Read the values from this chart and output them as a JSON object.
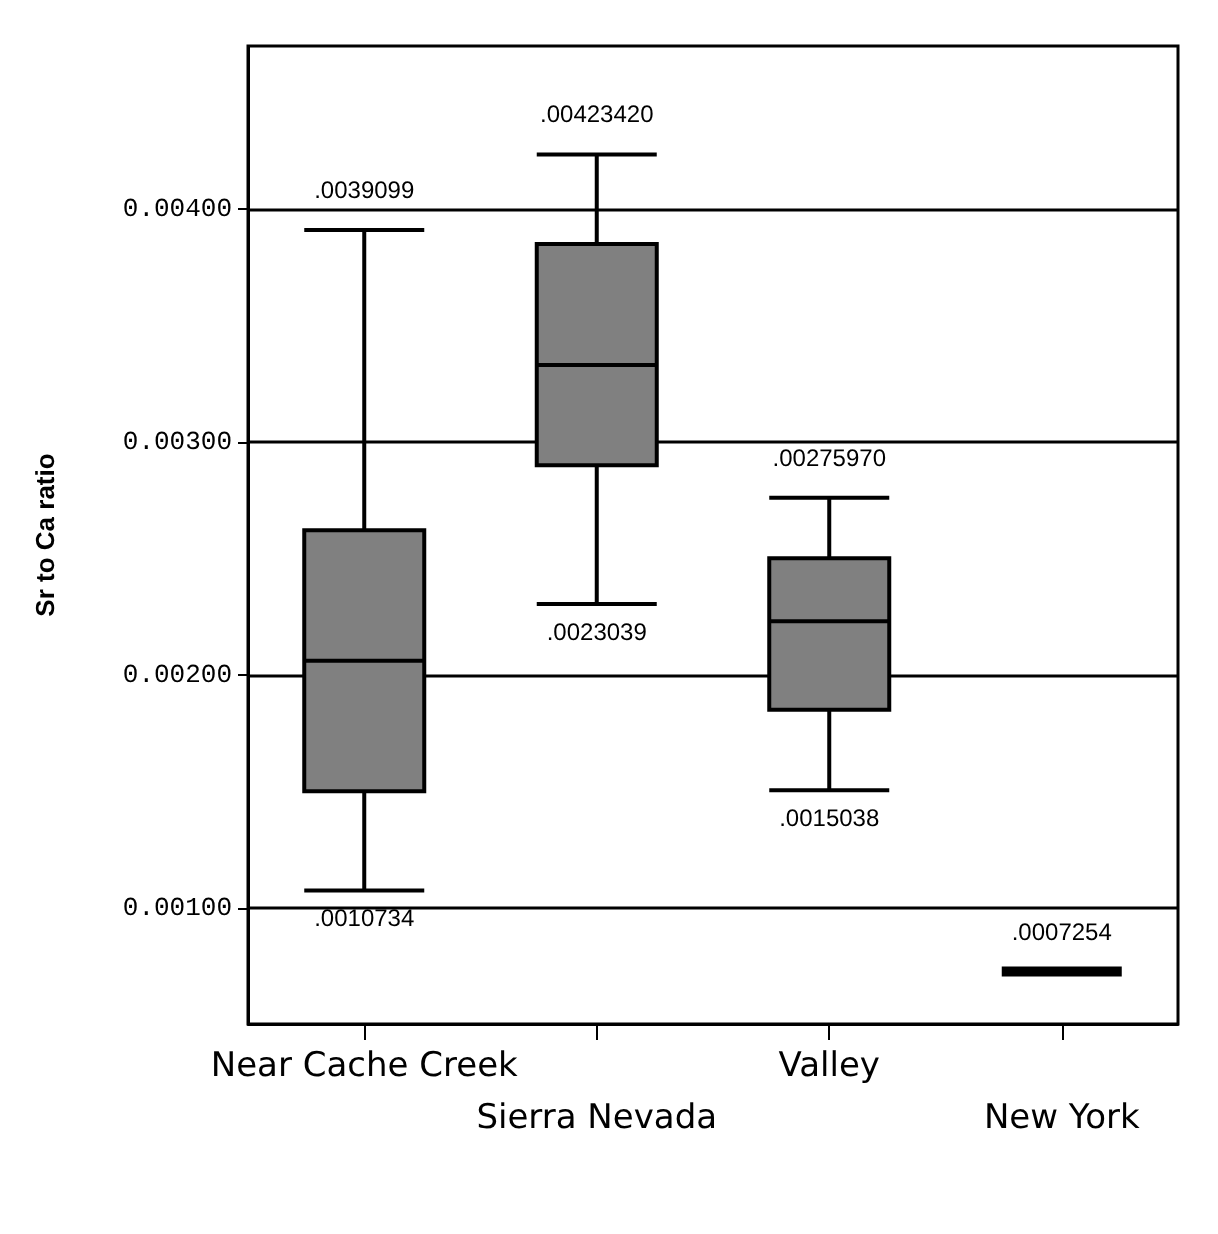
{
  "chart_data": {
    "type": "box",
    "ylabel": "Sr to Ca ratio",
    "categories": [
      "Near Cache Creek",
      "Sierra Nevada",
      "Valley",
      "New York"
    ],
    "colors": [
      "#808080",
      "#808080",
      "#808080",
      "#000000"
    ],
    "boxes": [
      {
        "low": 0.0010734,
        "q1": 0.0015,
        "median": 0.00206,
        "q3": 0.00262,
        "high": 0.0039099
      },
      {
        "low": 0.0023039,
        "q1": 0.0029,
        "median": 0.00333,
        "q3": 0.00385,
        "high": 0.0042342
      },
      {
        "low": 0.0015038,
        "q1": 0.00185,
        "median": 0.00223,
        "q3": 0.0025,
        "high": 0.0027597
      },
      {
        "low": 0.0007254,
        "q1": 0.0007254,
        "median": 0.0007254,
        "q3": 0.0007254,
        "high": 0.0007254
      }
    ],
    "ylim": [
      0.0005,
      0.0047
    ],
    "yticks": [
      {
        "value": 0.001,
        "label": "0.00100"
      },
      {
        "value": 0.002,
        "label": "0.00200"
      },
      {
        "value": 0.003,
        "label": "0.00300"
      },
      {
        "value": 0.004,
        "label": "0.00400"
      }
    ],
    "grid": "y",
    "annotations": [
      {
        "text": ".0039099",
        "x": "Near Cache Creek",
        "y": 0.0039099
      },
      {
        "text": ".0010734",
        "x": "Near Cache Creek",
        "y": 0.0010734
      },
      {
        "text": ".00423420",
        "x": "Sierra Nevada",
        "y": 0.0042342
      },
      {
        "text": ".0023039",
        "x": "Sierra Nevada",
        "y": 0.0023039
      },
      {
        "text": ".00275970",
        "x": "Valley",
        "y": 0.0027597
      },
      {
        "text": ".0015038",
        "x": "Valley",
        "y": 0.0015038
      },
      {
        "text": ".0007254",
        "x": "New York",
        "y": 0.0007254
      }
    ]
  }
}
